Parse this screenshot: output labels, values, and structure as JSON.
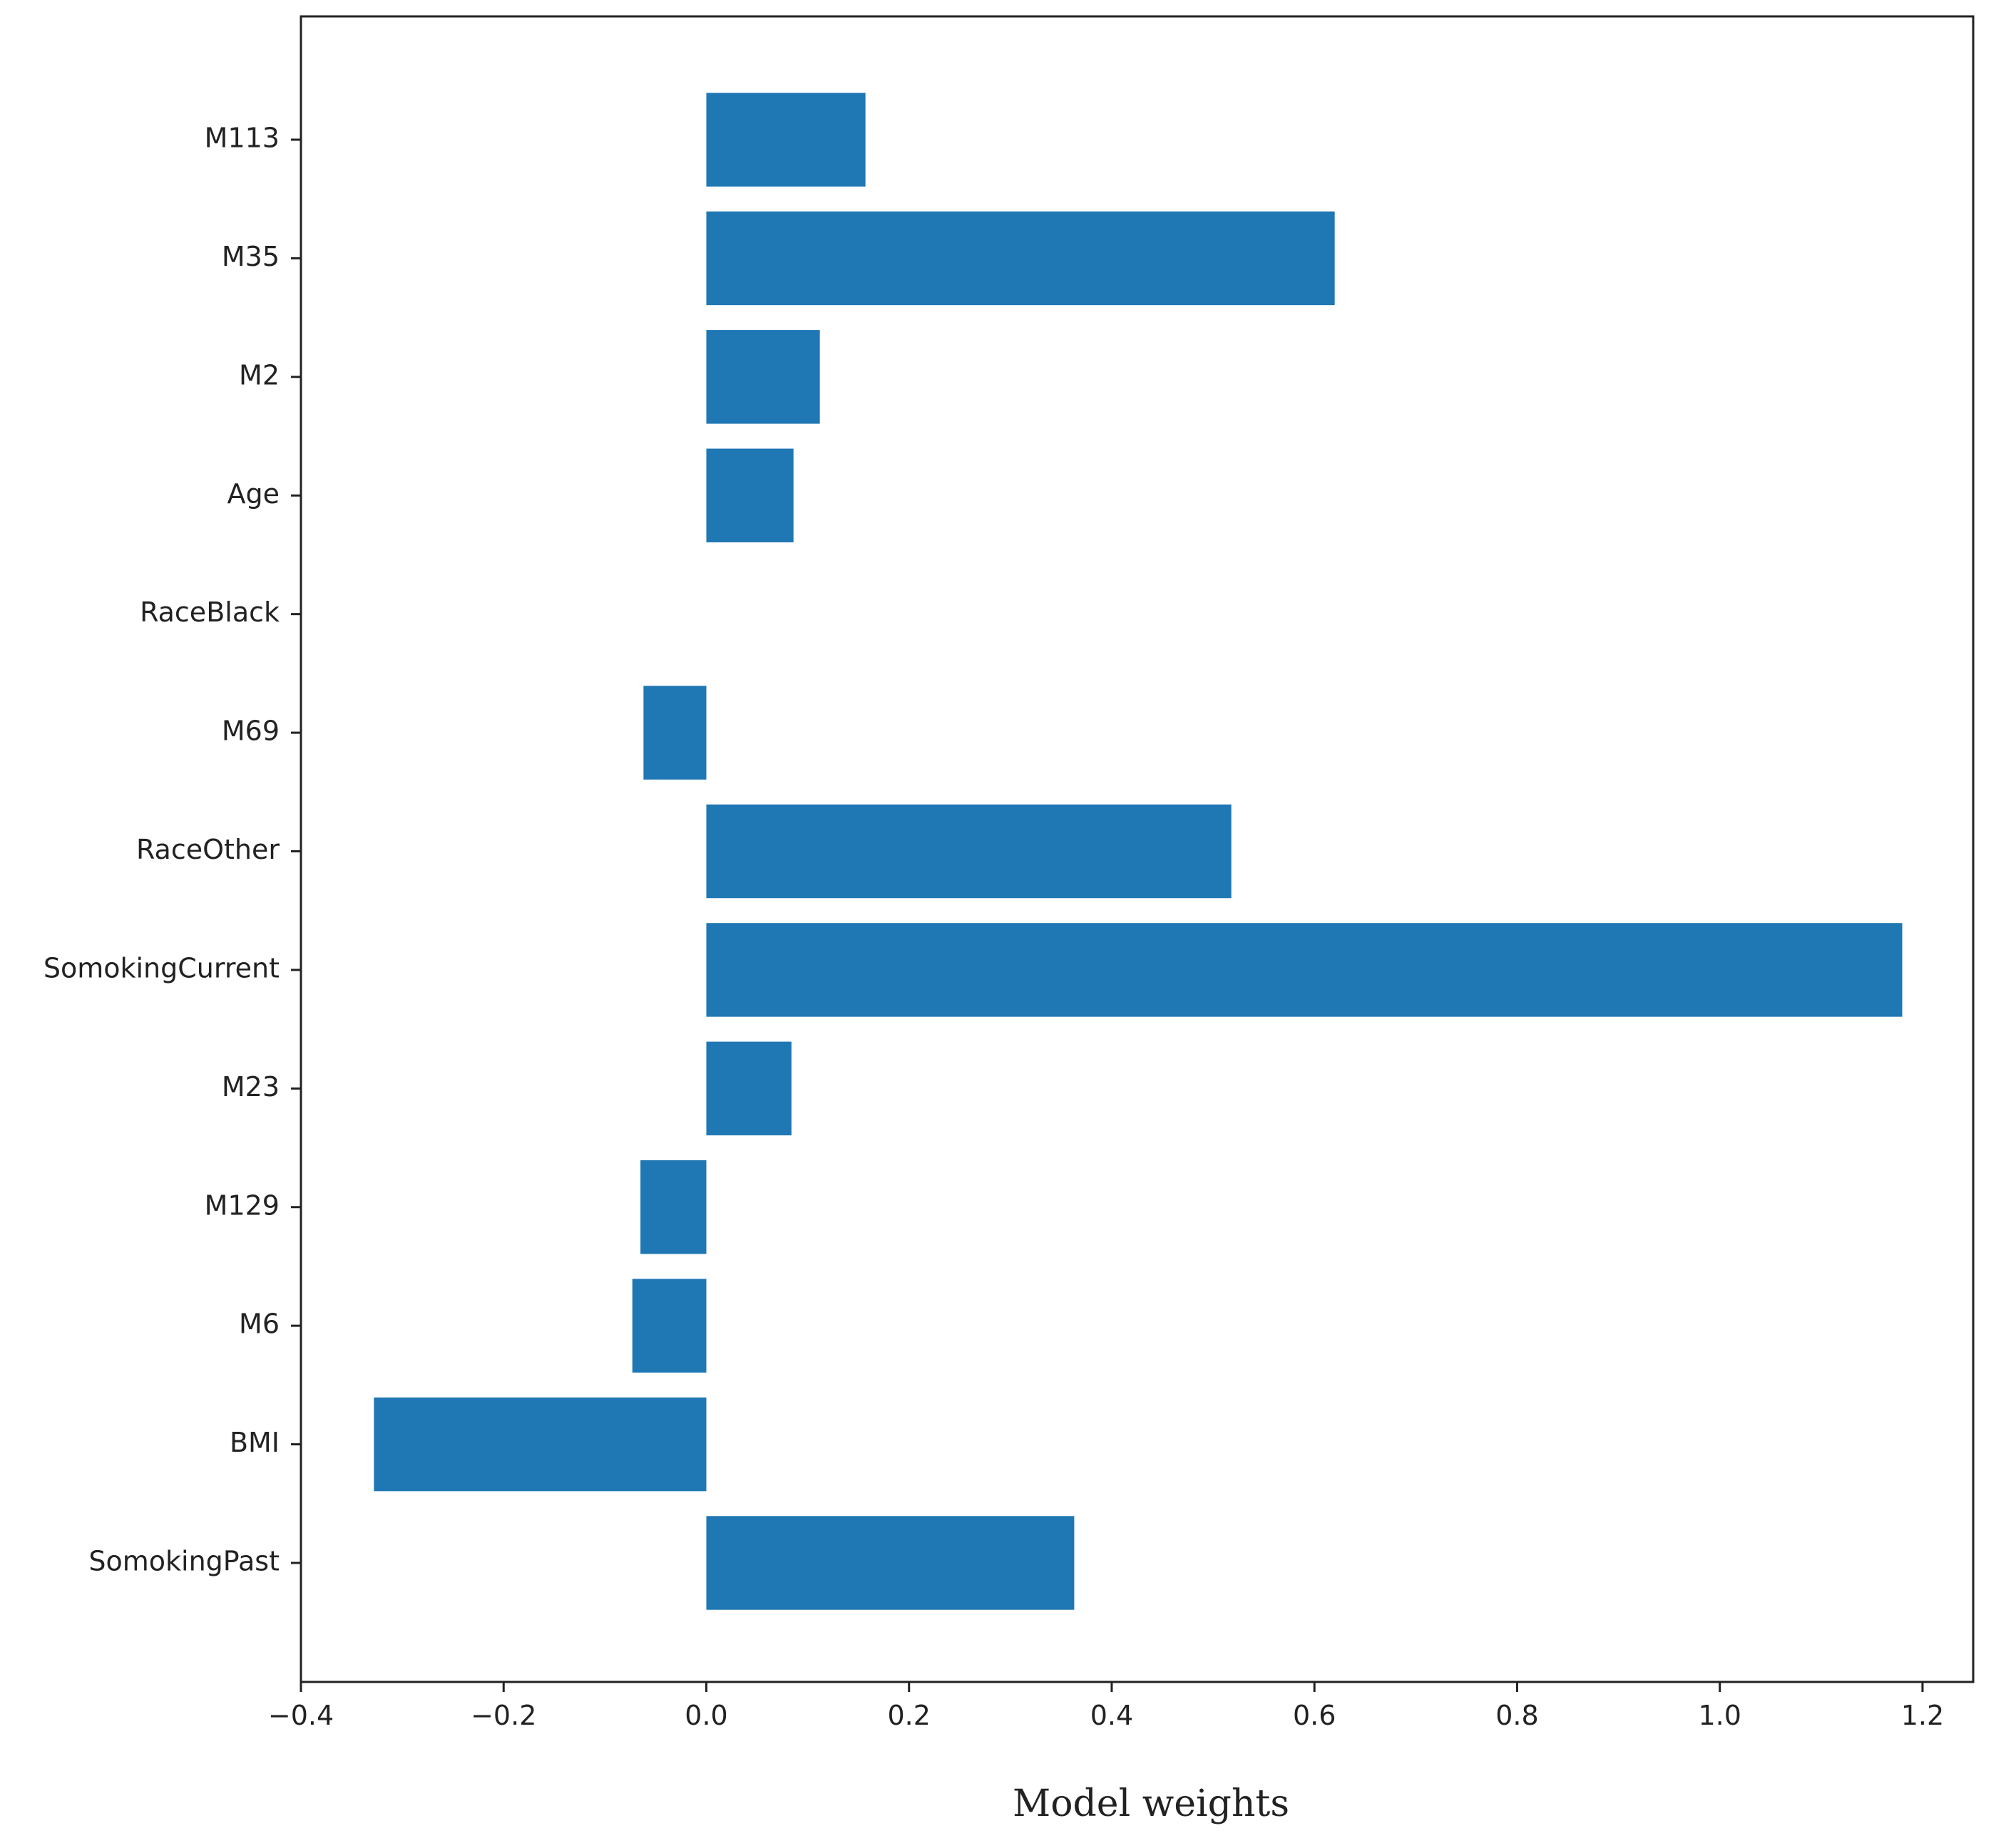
{
  "chart_data": {
    "type": "bar",
    "orientation": "horizontal",
    "title": "",
    "xlabel": "Model weights",
    "ylabel": "",
    "xlim": [
      -0.4,
      1.25
    ],
    "xticks": [
      -0.4,
      -0.2,
      0.0,
      0.2,
      0.4,
      0.6,
      0.8,
      1.0,
      1.2
    ],
    "xtick_labels": [
      "−0.4",
      "−0.2",
      "0.0",
      "0.2",
      "0.4",
      "0.6",
      "0.8",
      "1.0",
      "1.2"
    ],
    "categories": [
      "M113",
      "M35",
      "M2",
      "Age",
      "RaceBlack",
      "M69",
      "RaceOther",
      "SomokingCurrent",
      "M23",
      "M129",
      "M6",
      "BMI",
      "SomokingPast"
    ],
    "values": [
      0.157,
      0.62,
      0.112,
      0.086,
      0.0,
      -0.062,
      0.518,
      1.18,
      0.084,
      -0.065,
      -0.073,
      -0.328,
      0.363
    ],
    "grid": false,
    "legend": "none",
    "bar_color": "#1f77b4"
  }
}
